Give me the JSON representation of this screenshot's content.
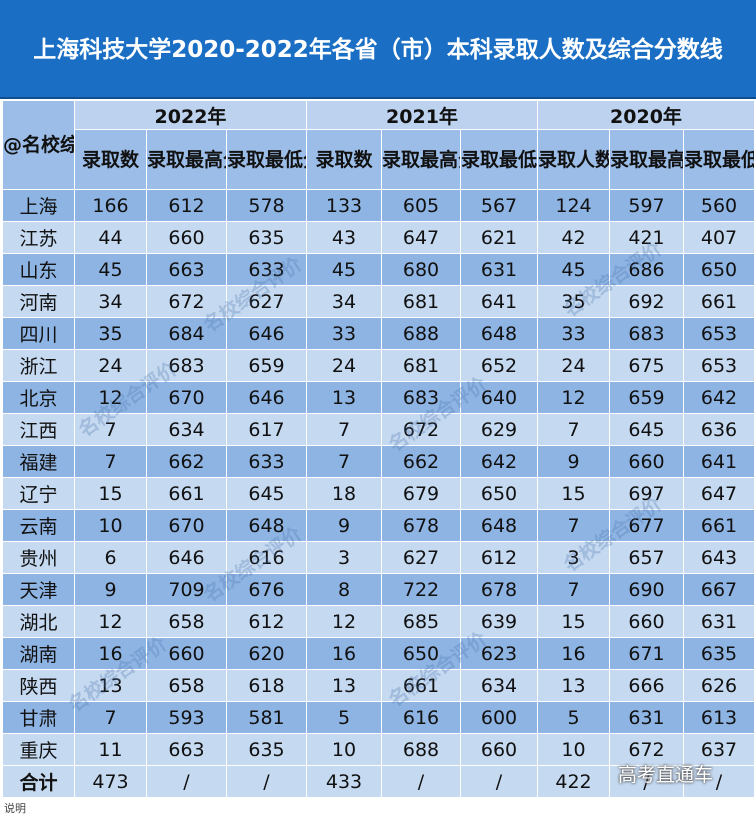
{
  "title": "上海科技大学2020-2022年各省（市）本科录取人数及综合分数线",
  "corner_label": "@名校综合评价",
  "years": [
    "2022年",
    "2021年",
    "2020年"
  ],
  "sub_headers": [
    [
      "录取数",
      "录取最高分",
      "录取最低分"
    ],
    [
      "录取数",
      "录取最高分",
      "录取最低分"
    ],
    [
      "录取人数",
      "录取最高分",
      "录取最低分"
    ]
  ],
  "rows": [
    [
      "上海",
      "166",
      "612",
      "578",
      "133",
      "605",
      "567",
      "124",
      "597",
      "560"
    ],
    [
      "江苏",
      "44",
      "660",
      "635",
      "43",
      "647",
      "621",
      "42",
      "421",
      "407"
    ],
    [
      "山东",
      "45",
      "663",
      "633",
      "45",
      "680",
      "631",
      "45",
      "686",
      "650"
    ],
    [
      "河南",
      "34",
      "672",
      "627",
      "34",
      "681",
      "641",
      "35",
      "692",
      "661"
    ],
    [
      "四川",
      "35",
      "684",
      "646",
      "33",
      "688",
      "648",
      "33",
      "683",
      "653"
    ],
    [
      "浙江",
      "24",
      "683",
      "659",
      "24",
      "681",
      "652",
      "24",
      "675",
      "653"
    ],
    [
      "北京",
      "12",
      "670",
      "646",
      "13",
      "683",
      "640",
      "12",
      "659",
      "642"
    ],
    [
      "江西",
      "7",
      "634",
      "617",
      "7",
      "672",
      "629",
      "7",
      "645",
      "636"
    ],
    [
      "福建",
      "7",
      "662",
      "633",
      "7",
      "662",
      "642",
      "9",
      "660",
      "641"
    ],
    [
      "辽宁",
      "15",
      "661",
      "645",
      "18",
      "679",
      "650",
      "15",
      "697",
      "647"
    ],
    [
      "云南",
      "10",
      "670",
      "648",
      "9",
      "678",
      "648",
      "7",
      "677",
      "661"
    ],
    [
      "贵州",
      "6",
      "646",
      "616",
      "3",
      "627",
      "612",
      "3",
      "657",
      "643"
    ],
    [
      "天津",
      "9",
      "709",
      "676",
      "8",
      "722",
      "678",
      "7",
      "690",
      "667"
    ],
    [
      "湖北",
      "12",
      "658",
      "612",
      "12",
      "685",
      "639",
      "15",
      "660",
      "631"
    ],
    [
      "湖南",
      "16",
      "660",
      "620",
      "16",
      "650",
      "623",
      "16",
      "671",
      "635"
    ],
    [
      "陕西",
      "13",
      "658",
      "618",
      "13",
      "661",
      "634",
      "13",
      "666",
      "626"
    ],
    [
      "甘肃",
      "7",
      "593",
      "581",
      "5",
      "616",
      "600",
      "5",
      "631",
      "613"
    ],
    [
      "重庆",
      "11",
      "663",
      "635",
      "10",
      "688",
      "660",
      "10",
      "672",
      "637"
    ]
  ],
  "total": [
    "合计",
    "473",
    "/",
    "/",
    "433",
    "/",
    "/",
    "422",
    "/",
    "/"
  ],
  "watermark_text": "名校综合评价",
  "brand_watermark": "高考直通车",
  "footer_note": "说明",
  "colors": {
    "banner": "#1a6fc4",
    "header_light": "#bcd2ee",
    "header_dark": "#9bbde8",
    "row_dark": "#8eb4e3",
    "row_light": "#c5d9f1"
  }
}
